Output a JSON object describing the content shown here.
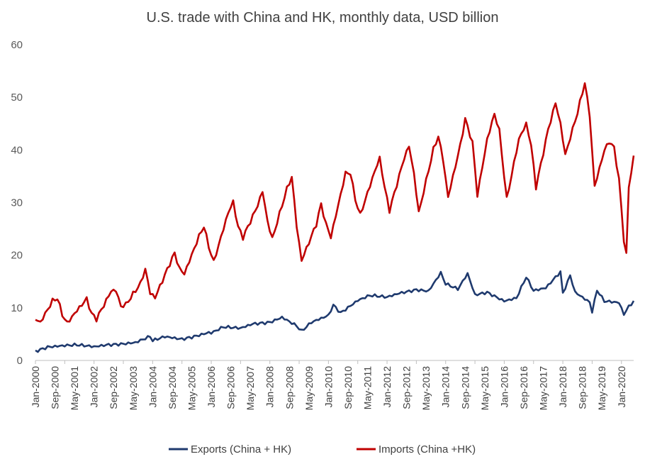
{
  "chart_data": {
    "type": "line",
    "title": "U.S. trade with China and HK, monthly data, USD billion",
    "xlabel": "",
    "ylabel": "",
    "ylim": [
      0,
      60
    ],
    "y_ticks": [
      "0",
      "10",
      "20",
      "30",
      "40",
      "50",
      "60"
    ],
    "x_start": "2000-01",
    "x_end": "2020-06",
    "x_tick_labels": [
      "Jan-2000",
      "Sep-2000",
      "May-2001",
      "Jan-2002",
      "Sep-2002",
      "May-2003",
      "Jan-2004",
      "Sep-2004",
      "May-2005",
      "Jan-2006",
      "Sep-2006",
      "May-2007",
      "Jan-2008",
      "Sep-2008",
      "May-2009",
      "Jan-2010",
      "Sep-2010",
      "May-2011",
      "Jan-2012",
      "Sep-2012",
      "May-2013",
      "Jan-2014",
      "Sep-2014",
      "May-2015",
      "Jan-2016",
      "Sep-2016",
      "May-2017",
      "Jan-2018",
      "Sep-2018",
      "May-2019",
      "Jan-2020"
    ],
    "grid": false,
    "legend_position": "bottom",
    "series": [
      {
        "name": "Exports (China + HK)",
        "color": "#1f3a6e",
        "anchors": [
          [
            "2000-01",
            1.8
          ],
          [
            "2000-06",
            2.6
          ],
          [
            "2001-01",
            2.8
          ],
          [
            "2001-06",
            2.9
          ],
          [
            "2002-01",
            2.6
          ],
          [
            "2002-06",
            3.0
          ],
          [
            "2003-01",
            3.2
          ],
          [
            "2003-06",
            3.4
          ],
          [
            "2003-12",
            4.5
          ],
          [
            "2004-01",
            3.7
          ],
          [
            "2004-06",
            4.5
          ],
          [
            "2005-01",
            4.1
          ],
          [
            "2005-06",
            4.6
          ],
          [
            "2005-12",
            5.3
          ],
          [
            "2006-01",
            5.2
          ],
          [
            "2006-06",
            6.3
          ],
          [
            "2007-01",
            6.1
          ],
          [
            "2007-06",
            7.0
          ],
          [
            "2008-01",
            7.3
          ],
          [
            "2008-06",
            8.2
          ],
          [
            "2008-12",
            6.5
          ],
          [
            "2009-02",
            5.5
          ],
          [
            "2009-06",
            7.2
          ],
          [
            "2010-01",
            8.6
          ],
          [
            "2010-03",
            10.6
          ],
          [
            "2010-06",
            9.1
          ],
          [
            "2011-01",
            11.4
          ],
          [
            "2011-06",
            12.3
          ],
          [
            "2012-01",
            12.0
          ],
          [
            "2012-06",
            12.8
          ],
          [
            "2013-01",
            13.5
          ],
          [
            "2013-06",
            13.2
          ],
          [
            "2013-11",
            16.6
          ],
          [
            "2014-01",
            14.5
          ],
          [
            "2014-06",
            13.5
          ],
          [
            "2014-10",
            16.5
          ],
          [
            "2015-01",
            12.5
          ],
          [
            "2015-06",
            13.0
          ],
          [
            "2016-01",
            11.3
          ],
          [
            "2016-06",
            11.8
          ],
          [
            "2016-10",
            15.8
          ],
          [
            "2017-01",
            13.2
          ],
          [
            "2017-06",
            13.8
          ],
          [
            "2017-12",
            16.9
          ],
          [
            "2018-01",
            12.8
          ],
          [
            "2018-04",
            16.2
          ],
          [
            "2018-06",
            13.0
          ],
          [
            "2018-12",
            11.0
          ],
          [
            "2019-01",
            9.2
          ],
          [
            "2019-03",
            13.3
          ],
          [
            "2019-06",
            11.2
          ],
          [
            "2019-12",
            11.0
          ],
          [
            "2020-02",
            8.8
          ],
          [
            "2020-04",
            10.3
          ],
          [
            "2020-06",
            11.3
          ]
        ]
      },
      {
        "name": "Imports (China +HK)",
        "color": "#c00000",
        "anchors": [
          [
            "2000-01",
            7.9
          ],
          [
            "2000-03",
            7.2
          ],
          [
            "2000-08",
            11.2
          ],
          [
            "2000-10",
            11.7
          ],
          [
            "2000-12",
            8.6
          ],
          [
            "2001-02",
            7.0
          ],
          [
            "2001-06",
            9.5
          ],
          [
            "2001-10",
            11.8
          ],
          [
            "2001-12",
            9.0
          ],
          [
            "2002-02",
            8.0
          ],
          [
            "2002-08",
            13.2
          ],
          [
            "2002-10",
            13.3
          ],
          [
            "2002-12",
            10.2
          ],
          [
            "2003-02",
            10.5
          ],
          [
            "2003-08",
            14.5
          ],
          [
            "2003-10",
            17.3
          ],
          [
            "2003-12",
            12.8
          ],
          [
            "2004-02",
            12.0
          ],
          [
            "2004-08",
            18.5
          ],
          [
            "2004-10",
            20.5
          ],
          [
            "2004-12",
            17.5
          ],
          [
            "2005-02",
            16.5
          ],
          [
            "2005-08",
            23.5
          ],
          [
            "2005-10",
            25.4
          ],
          [
            "2005-12",
            21.5
          ],
          [
            "2006-02",
            18.6
          ],
          [
            "2006-08",
            28.2
          ],
          [
            "2006-10",
            30.2
          ],
          [
            "2006-12",
            25.5
          ],
          [
            "2007-02",
            23.5
          ],
          [
            "2007-08",
            29.5
          ],
          [
            "2007-10",
            32.2
          ],
          [
            "2007-12",
            26.5
          ],
          [
            "2008-02",
            23.0
          ],
          [
            "2008-08",
            32.5
          ],
          [
            "2008-10",
            34.8
          ],
          [
            "2008-12",
            25.5
          ],
          [
            "2009-02",
            19.0
          ],
          [
            "2009-08",
            26.0
          ],
          [
            "2009-10",
            29.8
          ],
          [
            "2009-12",
            26.0
          ],
          [
            "2010-02",
            23.5
          ],
          [
            "2010-08",
            35.5
          ],
          [
            "2010-10",
            35.5
          ],
          [
            "2010-12",
            30.5
          ],
          [
            "2011-02",
            27.5
          ],
          [
            "2011-08",
            36.0
          ],
          [
            "2011-10",
            38.5
          ],
          [
            "2011-12",
            33.0
          ],
          [
            "2012-02",
            28.6
          ],
          [
            "2012-08",
            38.5
          ],
          [
            "2012-10",
            40.8
          ],
          [
            "2012-12",
            35.5
          ],
          [
            "2013-02",
            28.0
          ],
          [
            "2013-08",
            40.0
          ],
          [
            "2013-10",
            42.5
          ],
          [
            "2013-12",
            38.0
          ],
          [
            "2014-02",
            31.0
          ],
          [
            "2014-07",
            41.0
          ],
          [
            "2014-09",
            46.0
          ],
          [
            "2014-12",
            41.5
          ],
          [
            "2015-02",
            31.5
          ],
          [
            "2015-06",
            42.0
          ],
          [
            "2015-09",
            46.8
          ],
          [
            "2015-11",
            43.5
          ],
          [
            "2016-02",
            30.5
          ],
          [
            "2016-07",
            42.0
          ],
          [
            "2016-10",
            45.0
          ],
          [
            "2016-12",
            41.0
          ],
          [
            "2017-02",
            33.0
          ],
          [
            "2017-07",
            44.0
          ],
          [
            "2017-10",
            49.0
          ],
          [
            "2017-12",
            45.0
          ],
          [
            "2018-02",
            39.0
          ],
          [
            "2018-07",
            47.0
          ],
          [
            "2018-10",
            52.7
          ],
          [
            "2018-12",
            46.5
          ],
          [
            "2019-02",
            33.0
          ],
          [
            "2019-06",
            40.0
          ],
          [
            "2019-08",
            41.7
          ],
          [
            "2019-10",
            40.5
          ],
          [
            "2019-12",
            34.5
          ],
          [
            "2020-02",
            23.0
          ],
          [
            "2020-03",
            20.2
          ],
          [
            "2020-04",
            33.0
          ],
          [
            "2020-06",
            38.7
          ]
        ]
      }
    ]
  }
}
